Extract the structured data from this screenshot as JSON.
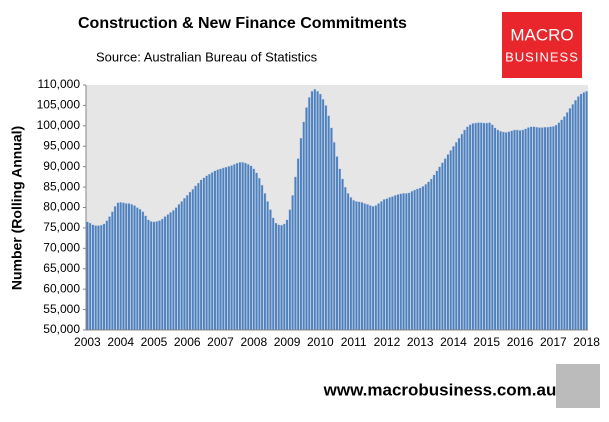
{
  "chart_data": {
    "type": "bar",
    "title": "Construction & New Finance Commitments",
    "subtitle": "Source: Australian  Bureau of Statistics",
    "y_label": "Number (Rolling Annual)",
    "footer": "www.macrobusiness.com.au",
    "logo": {
      "line1": "MACRO",
      "line2": "BUSINESS"
    },
    "color": "#4f81bd",
    "ylim": [
      50000,
      110000
    ],
    "yticks": [
      {
        "value": 50000,
        "label": "50,000"
      },
      {
        "value": 55000,
        "label": "55,000"
      },
      {
        "value": 60000,
        "label": "60,000"
      },
      {
        "value": 65000,
        "label": "65,000"
      },
      {
        "value": 70000,
        "label": "70,000"
      },
      {
        "value": 75000,
        "label": "75,000"
      },
      {
        "value": 80000,
        "label": "80,000"
      },
      {
        "value": 85000,
        "label": "85,000"
      },
      {
        "value": 90000,
        "label": "90,000"
      },
      {
        "value": 95000,
        "label": "95,000"
      },
      {
        "value": 100000,
        "label": "100,000"
      },
      {
        "value": 105000,
        "label": "105,000"
      },
      {
        "value": 110000,
        "label": "110,000"
      }
    ],
    "categories": [
      "2003",
      null,
      null,
      null,
      null,
      null,
      null,
      null,
      null,
      null,
      null,
      null,
      "2004",
      null,
      null,
      null,
      null,
      null,
      null,
      null,
      null,
      null,
      null,
      null,
      "2005",
      null,
      null,
      null,
      null,
      null,
      null,
      null,
      null,
      null,
      null,
      null,
      "2006",
      null,
      null,
      null,
      null,
      null,
      null,
      null,
      null,
      null,
      null,
      null,
      "2007",
      null,
      null,
      null,
      null,
      null,
      null,
      null,
      null,
      null,
      null,
      null,
      "2008",
      null,
      null,
      null,
      null,
      null,
      null,
      null,
      null,
      null,
      null,
      null,
      "2009",
      null,
      null,
      null,
      null,
      null,
      null,
      null,
      null,
      null,
      null,
      null,
      "2010",
      null,
      null,
      null,
      null,
      null,
      null,
      null,
      null,
      null,
      null,
      null,
      "2011",
      null,
      null,
      null,
      null,
      null,
      null,
      null,
      null,
      null,
      null,
      null,
      "2012",
      null,
      null,
      null,
      null,
      null,
      null,
      null,
      null,
      null,
      null,
      null,
      "2013",
      null,
      null,
      null,
      null,
      null,
      null,
      null,
      null,
      null,
      null,
      null,
      "2014",
      null,
      null,
      null,
      null,
      null,
      null,
      null,
      null,
      null,
      null,
      null,
      "2015",
      null,
      null,
      null,
      null,
      null,
      null,
      null,
      null,
      null,
      null,
      null,
      "2016",
      null,
      null,
      null,
      null,
      null,
      null,
      null,
      null,
      null,
      null,
      null,
      "2017",
      null,
      null,
      null,
      null,
      null,
      null,
      null,
      null,
      null,
      null,
      null,
      "2018"
    ],
    "values": [
      76500,
      76200,
      75800,
      75600,
      75600,
      75700,
      76000,
      76800,
      77800,
      79000,
      80300,
      81200,
      81300,
      81200,
      81000,
      81000,
      80800,
      80500,
      80000,
      79600,
      79000,
      78000,
      77000,
      76600,
      76500,
      76600,
      76800,
      77200,
      77800,
      78300,
      78800,
      79300,
      80000,
      80800,
      81500,
      82300,
      83000,
      83800,
      84500,
      85300,
      86000,
      86800,
      87300,
      87800,
      88200,
      88600,
      89000,
      89300,
      89500,
      89700,
      89900,
      90100,
      90300,
      90600,
      90900,
      91100,
      91100,
      90900,
      90600,
      90200,
      89500,
      88500,
      87200,
      85500,
      83500,
      81500,
      79500,
      77500,
      76200,
      75800,
      75700,
      76000,
      77000,
      79500,
      83000,
      87500,
      92000,
      97000,
      101000,
      104500,
      107000,
      108500,
      109000,
      108500,
      107800,
      106500,
      105000,
      102500,
      99500,
      96000,
      92500,
      89500,
      87000,
      85000,
      83500,
      82500,
      81800,
      81500,
      81400,
      81300,
      81000,
      80800,
      80500,
      80300,
      80500,
      81000,
      81500,
      82000,
      82200,
      82500,
      82700,
      83000,
      83200,
      83400,
      83500,
      83500,
      83600,
      84000,
      84300,
      84600,
      84800,
      85200,
      85700,
      86300,
      87000,
      88000,
      89000,
      90000,
      91000,
      92000,
      93000,
      94000,
      95000,
      96000,
      97000,
      98000,
      99000,
      99800,
      100300,
      100600,
      100700,
      100800,
      100800,
      100700,
      100700,
      100800,
      100300,
      99500,
      99000,
      98700,
      98500,
      98400,
      98600,
      98800,
      99000,
      99000,
      98900,
      99000,
      99300,
      99600,
      99800,
      99800,
      99700,
      99600,
      99600,
      99700,
      99700,
      99800,
      99900,
      100200,
      100800,
      101500,
      102300,
      103300,
      104300,
      105300,
      106300,
      107200,
      107800,
      108200,
      108500
    ]
  }
}
